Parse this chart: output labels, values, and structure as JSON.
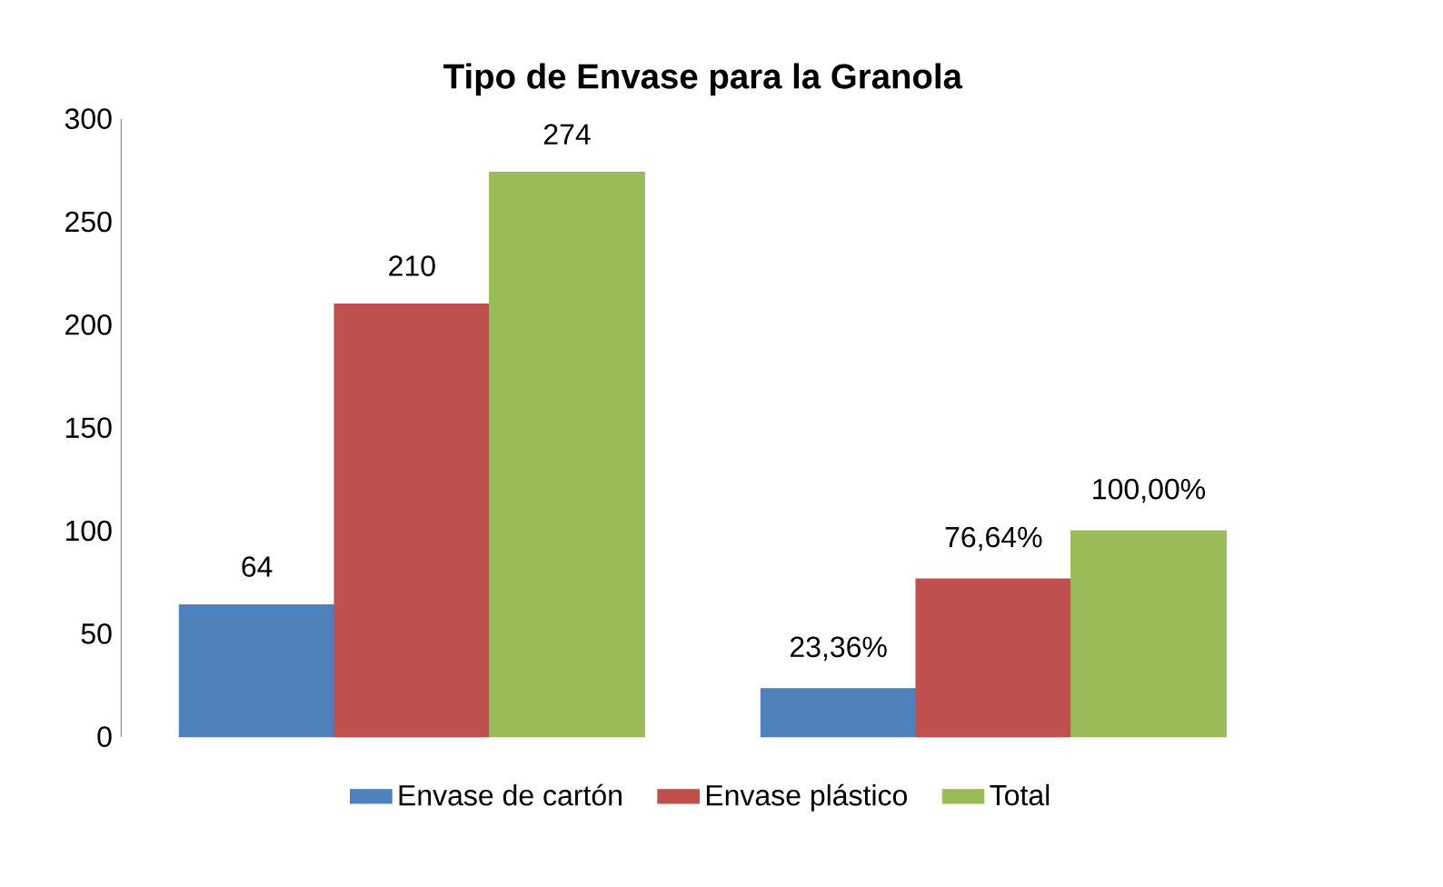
{
  "chart_data": {
    "type": "bar",
    "title": "Tipo de Envase para la Granola",
    "categories": [
      null,
      null
    ],
    "series": [
      {
        "name": "Envase de cartón",
        "color": "#4f81bd",
        "values": [
          64,
          23.36
        ],
        "value_labels": [
          "64",
          "23,36%"
        ]
      },
      {
        "name": "Envase plástico",
        "color": "#c0504d",
        "values": [
          210,
          76.64
        ],
        "value_labels": [
          "210",
          "76,64%"
        ]
      },
      {
        "name": "Total",
        "color": "#9bbb59",
        "values": [
          274,
          100
        ],
        "value_labels": [
          "274",
          "100,00%"
        ]
      }
    ],
    "ylim": [
      0,
      300
    ],
    "yticks": [
      0,
      50,
      100,
      150,
      200,
      250,
      300
    ],
    "grid": false,
    "legend": "bottom"
  }
}
